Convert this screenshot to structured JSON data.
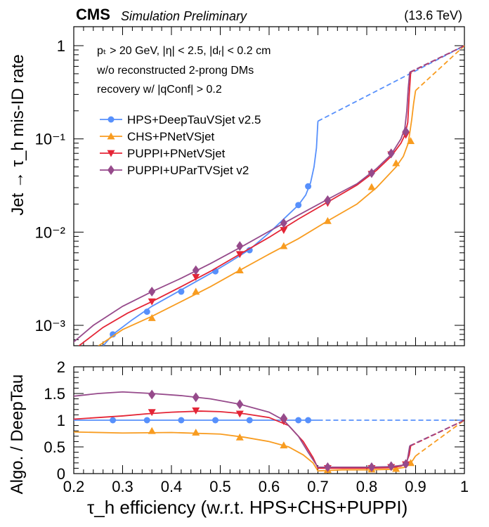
{
  "header": {
    "experiment": "CMS",
    "status": "Simulation Preliminary",
    "energy": "(13.6 TeV)"
  },
  "annotations": {
    "line1": "pₜ > 20 GeV, |η| < 2.5, |dᵣ| < 0.2 cm",
    "line2": "w/o reconstructed 2-prong DMs",
    "line3": "recovery w/ |qConf| > 0.2"
  },
  "chart_data": [
    {
      "type": "line",
      "panel": "main",
      "title": "",
      "xlabel": "τ_h efficiency (w.r.t. HPS+CHS+PUPPI)",
      "ylabel": "Jet → τ_h mis-ID rate",
      "yscale": "log",
      "xlim": [
        0.2,
        1.0
      ],
      "ylim": [
        0.0006,
        1.5
      ],
      "x_ticks": [
        "0.2",
        "0.3",
        "0.4",
        "0.5",
        "0.6",
        "0.7",
        "0.8",
        "0.9",
        "1"
      ],
      "y_ticks": [
        "10⁻³",
        "10⁻²",
        "10⁻¹",
        "1"
      ],
      "legend_position": "upper-left",
      "series": [
        {
          "name": "HPS+DeepTauVSjet v2.5",
          "color": "#5790fc",
          "marker": "circle",
          "curve": [
            [
              0.26,
              0.0006
            ],
            [
              0.28,
              0.0008
            ],
            [
              0.32,
              0.00115
            ],
            [
              0.36,
              0.0016
            ],
            [
              0.42,
              0.0024
            ],
            [
              0.48,
              0.0036
            ],
            [
              0.52,
              0.0048
            ],
            [
              0.56,
              0.0065
            ],
            [
              0.6,
              0.0098
            ],
            [
              0.64,
              0.0155
            ],
            [
              0.66,
              0.0195
            ],
            [
              0.675,
              0.025
            ],
            [
              0.685,
              0.034
            ],
            [
              0.692,
              0.05
            ],
            [
              0.697,
              0.08
            ],
            [
              0.7,
              0.155
            ]
          ],
          "dashed": [
            [
              0.7,
              0.155
            ],
            [
              1.0,
              1.0
            ]
          ],
          "markers_x": [
            0.28,
            0.35,
            0.42,
            0.49,
            0.56,
            0.66,
            0.68
          ],
          "markers_y": [
            0.0008,
            0.0014,
            0.0023,
            0.0038,
            0.0064,
            0.0195,
            0.031
          ]
        },
        {
          "name": "CHS+PNetVSjet",
          "color": "#f89c20",
          "marker": "triangle-up",
          "curve": [
            [
              0.25,
              0.0006
            ],
            [
              0.3,
              0.0009
            ],
            [
              0.36,
              0.00125
            ],
            [
              0.42,
              0.0018
            ],
            [
              0.48,
              0.0026
            ],
            [
              0.54,
              0.0039
            ],
            [
              0.6,
              0.0058
            ],
            [
              0.66,
              0.0085
            ],
            [
              0.72,
              0.0132
            ],
            [
              0.78,
              0.02
            ],
            [
              0.82,
              0.03
            ],
            [
              0.86,
              0.05
            ],
            [
              0.875,
              0.065
            ],
            [
              0.885,
              0.09
            ],
            [
              0.892,
              0.16
            ],
            [
              0.896,
              0.24
            ],
            [
              0.9,
              0.33
            ]
          ],
          "dashed": [
            [
              0.9,
              0.33
            ],
            [
              1.0,
              1.0
            ]
          ],
          "markers_x": [
            0.36,
            0.45,
            0.54,
            0.63,
            0.72,
            0.81,
            0.86,
            0.89
          ],
          "markers_y": [
            0.0012,
            0.0023,
            0.0039,
            0.0071,
            0.0132,
            0.0305,
            0.055,
            0.095
          ]
        },
        {
          "name": "PUPPI+PNetVSjet",
          "color": "#e42536",
          "marker": "triangle-down",
          "curve": [
            [
              0.21,
              0.0006
            ],
            [
              0.26,
              0.00095
            ],
            [
              0.31,
              0.00135
            ],
            [
              0.36,
              0.0018
            ],
            [
              0.42,
              0.0026
            ],
            [
              0.48,
              0.0038
            ],
            [
              0.54,
              0.0058
            ],
            [
              0.6,
              0.0088
            ],
            [
              0.66,
              0.0138
            ],
            [
              0.72,
              0.021
            ],
            [
              0.78,
              0.032
            ],
            [
              0.82,
              0.046
            ],
            [
              0.85,
              0.065
            ],
            [
              0.87,
              0.09
            ],
            [
              0.878,
              0.11
            ],
            [
              0.884,
              0.15
            ],
            [
              0.887,
              0.3
            ],
            [
              0.89,
              0.52
            ]
          ],
          "dashed": [
            [
              0.89,
              0.52
            ],
            [
              1.0,
              1.0
            ]
          ],
          "markers_x": [
            0.36,
            0.45,
            0.54,
            0.63,
            0.72,
            0.81,
            0.85,
            0.88
          ],
          "markers_y": [
            0.0018,
            0.0033,
            0.0058,
            0.0105,
            0.0205,
            0.042,
            0.068,
            0.11
          ]
        },
        {
          "name": "PUPPI+UParTVSjet v2",
          "color": "#964a8b",
          "marker": "diamond",
          "curve": [
            [
              0.19,
              0.0006
            ],
            [
              0.24,
              0.001
            ],
            [
              0.3,
              0.0016
            ],
            [
              0.36,
              0.0023
            ],
            [
              0.42,
              0.0032
            ],
            [
              0.48,
              0.0046
            ],
            [
              0.54,
              0.0068
            ],
            [
              0.6,
              0.0102
            ],
            [
              0.66,
              0.0152
            ],
            [
              0.72,
              0.0225
            ],
            [
              0.78,
              0.033
            ],
            [
              0.82,
              0.048
            ],
            [
              0.85,
              0.068
            ],
            [
              0.87,
              0.1
            ],
            [
              0.878,
              0.13
            ],
            [
              0.882,
              0.2
            ],
            [
              0.885,
              0.35
            ],
            [
              0.888,
              0.52
            ]
          ],
          "dashed": [
            [
              0.888,
              0.52
            ],
            [
              1.0,
              1.0
            ]
          ],
          "markers_x": [
            0.36,
            0.45,
            0.54,
            0.63,
            0.72,
            0.81,
            0.85,
            0.88
          ],
          "markers_y": [
            0.0023,
            0.0039,
            0.0071,
            0.0125,
            0.022,
            0.043,
            0.07,
            0.12
          ]
        }
      ]
    },
    {
      "type": "line",
      "panel": "ratio",
      "xlabel": "τ_h efficiency (w.r.t. HPS+CHS+PUPPI)",
      "ylabel": "Algo. / DeepTau",
      "xlim": [
        0.2,
        1.0
      ],
      "ylim": [
        0,
        2
      ],
      "x_ticks": [
        "0.2",
        "0.3",
        "0.4",
        "0.5",
        "0.6",
        "0.7",
        "0.8",
        "0.9",
        "1"
      ],
      "y_ticks": [
        "0",
        "0.5",
        "1",
        "1.5",
        "2"
      ],
      "series": [
        {
          "name": "HPS+DeepTauVSjet v2.5",
          "color": "#5790fc",
          "marker": "circle",
          "curve": [
            [
              0.2,
              1.0
            ],
            [
              0.7,
              1.0
            ]
          ],
          "dashed": [
            [
              0.7,
              1.0
            ],
            [
              1.0,
              1.0
            ]
          ],
          "markers_x": [
            0.28,
            0.35,
            0.42,
            0.49,
            0.56,
            0.66,
            0.68
          ],
          "markers_y": [
            1,
            1,
            1,
            1,
            1,
            1,
            1
          ]
        },
        {
          "name": "CHS+PNetVSjet",
          "color": "#f89c20",
          "marker": "triangle-up",
          "curve": [
            [
              0.2,
              0.78
            ],
            [
              0.3,
              0.76
            ],
            [
              0.4,
              0.77
            ],
            [
              0.5,
              0.74
            ],
            [
              0.55,
              0.68
            ],
            [
              0.6,
              0.6
            ],
            [
              0.64,
              0.5
            ],
            [
              0.67,
              0.35
            ],
            [
              0.69,
              0.2
            ],
            [
              0.7,
              0.05
            ],
            [
              0.75,
              0.07
            ],
            [
              0.8,
              0.07
            ],
            [
              0.85,
              0.08
            ],
            [
              0.88,
              0.12
            ],
            [
              0.89,
              0.2
            ],
            [
              0.895,
              0.26
            ],
            [
              0.9,
              0.33
            ]
          ],
          "dashed": [
            [
              0.9,
              0.33
            ],
            [
              1.0,
              1.0
            ]
          ],
          "markers_x": [
            0.36,
            0.45,
            0.54,
            0.63,
            0.72,
            0.81,
            0.86,
            0.89
          ],
          "markers_y": [
            0.8,
            0.77,
            0.68,
            0.53,
            0.07,
            0.08,
            0.09,
            0.2
          ]
        },
        {
          "name": "PUPPI+PNetVSjet",
          "color": "#e42536",
          "marker": "triangle-down",
          "curve": [
            [
              0.2,
              1.02
            ],
            [
              0.3,
              1.08
            ],
            [
              0.35,
              1.12
            ],
            [
              0.4,
              1.15
            ],
            [
              0.46,
              1.17
            ],
            [
              0.5,
              1.16
            ],
            [
              0.55,
              1.12
            ],
            [
              0.6,
              1.05
            ],
            [
              0.64,
              0.9
            ],
            [
              0.67,
              0.6
            ],
            [
              0.69,
              0.3
            ],
            [
              0.7,
              0.1
            ],
            [
              0.75,
              0.1
            ],
            [
              0.8,
              0.1
            ],
            [
              0.85,
              0.11
            ],
            [
              0.87,
              0.14
            ],
            [
              0.88,
              0.18
            ],
            [
              0.887,
              0.35
            ],
            [
              0.89,
              0.52
            ]
          ],
          "dashed": [
            [
              0.89,
              0.52
            ],
            [
              1.0,
              1.0
            ]
          ],
          "markers_x": [
            0.36,
            0.45,
            0.54,
            0.63,
            0.72,
            0.81,
            0.85,
            0.88
          ],
          "markers_y": [
            1.15,
            1.18,
            1.12,
            0.98,
            0.1,
            0.1,
            0.12,
            0.17
          ]
        },
        {
          "name": "PUPPI+UParTVSjet v2",
          "color": "#964a8b",
          "marker": "diamond",
          "curve": [
            [
              0.2,
              1.45
            ],
            [
              0.25,
              1.5
            ],
            [
              0.3,
              1.53
            ],
            [
              0.36,
              1.5
            ],
            [
              0.42,
              1.46
            ],
            [
              0.48,
              1.4
            ],
            [
              0.54,
              1.3
            ],
            [
              0.6,
              1.15
            ],
            [
              0.63,
              1.0
            ],
            [
              0.66,
              0.7
            ],
            [
              0.68,
              0.4
            ],
            [
              0.7,
              0.12
            ],
            [
              0.75,
              0.12
            ],
            [
              0.8,
              0.12
            ],
            [
              0.85,
              0.13
            ],
            [
              0.875,
              0.16
            ],
            [
              0.882,
              0.2
            ],
            [
              0.885,
              0.35
            ],
            [
              0.888,
              0.52
            ]
          ],
          "dashed": [
            [
              0.888,
              0.52
            ],
            [
              1.0,
              1.0
            ]
          ],
          "markers_x": [
            0.36,
            0.45,
            0.54,
            0.63,
            0.72,
            0.81,
            0.85,
            0.88
          ],
          "markers_y": [
            1.48,
            1.43,
            1.3,
            1.04,
            0.12,
            0.12,
            0.14,
            0.18
          ]
        }
      ]
    }
  ]
}
